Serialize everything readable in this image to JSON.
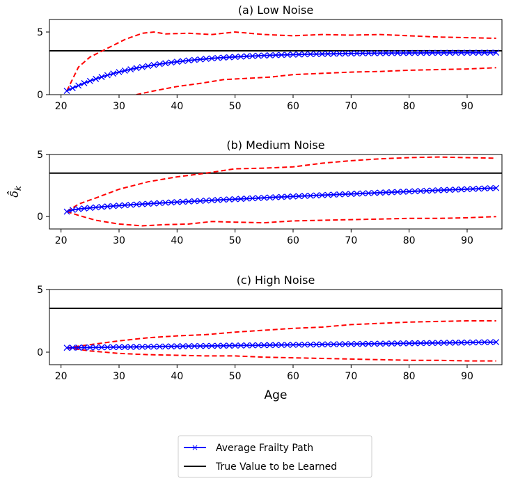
{
  "colors": {
    "average": "#0000ff",
    "band": "#ff0000",
    "truth": "#000000"
  },
  "chart_data": [
    {
      "type": "line",
      "title": "(a) Low Noise",
      "ylabel": "",
      "xlabel": "",
      "xlim": [
        18,
        96
      ],
      "ylim": [
        0,
        6
      ],
      "xticks": [
        20,
        30,
        40,
        50,
        60,
        70,
        80,
        90
      ],
      "yticks": [
        0,
        5
      ],
      "true_value": 3.5,
      "average": {
        "x0": 21,
        "x1": 95,
        "start": 0.3,
        "end": 3.35,
        "rate": 0.075
      },
      "upper_band": [
        [
          21,
          0.3
        ],
        [
          23,
          2.2
        ],
        [
          25,
          3.0
        ],
        [
          28,
          3.7
        ],
        [
          31,
          4.4
        ],
        [
          34,
          4.9
        ],
        [
          36,
          5.0
        ],
        [
          38,
          4.85
        ],
        [
          42,
          4.9
        ],
        [
          46,
          4.8
        ],
        [
          50,
          5.0
        ],
        [
          55,
          4.8
        ],
        [
          60,
          4.7
        ],
        [
          65,
          4.8
        ],
        [
          70,
          4.75
        ],
        [
          75,
          4.8
        ],
        [
          80,
          4.7
        ],
        [
          85,
          4.6
        ],
        [
          90,
          4.55
        ],
        [
          95,
          4.5
        ]
      ],
      "lower_band": [
        [
          33,
          0.0
        ],
        [
          36,
          0.3
        ],
        [
          40,
          0.65
        ],
        [
          44,
          0.9
        ],
        [
          48,
          1.2
        ],
        [
          52,
          1.3
        ],
        [
          56,
          1.4
        ],
        [
          60,
          1.6
        ],
        [
          65,
          1.7
        ],
        [
          70,
          1.8
        ],
        [
          75,
          1.85
        ],
        [
          80,
          1.95
        ],
        [
          85,
          2.0
        ],
        [
          90,
          2.05
        ],
        [
          95,
          2.15
        ]
      ]
    },
    {
      "type": "line",
      "title": "(b) Medium Noise",
      "ylabel": "δ̂",
      "ylabel_sub": "k",
      "xlabel": "",
      "xlim": [
        18,
        96
      ],
      "ylim": [
        -1,
        5
      ],
      "xticks": [
        20,
        30,
        40,
        50,
        60,
        70,
        80,
        90
      ],
      "yticks": [
        0,
        5
      ],
      "true_value": 3.5,
      "average": {
        "x0": 21,
        "x1": 95,
        "start": 0.4,
        "end": 2.3,
        "linear": 0.42,
        "curve": 1.6
      },
      "upper_band": [
        [
          21,
          0.4
        ],
        [
          23,
          1.0
        ],
        [
          26,
          1.5
        ],
        [
          30,
          2.2
        ],
        [
          35,
          2.8
        ],
        [
          40,
          3.2
        ],
        [
          45,
          3.5
        ],
        [
          50,
          3.85
        ],
        [
          55,
          3.9
        ],
        [
          60,
          4.0
        ],
        [
          65,
          4.3
        ],
        [
          70,
          4.5
        ],
        [
          75,
          4.65
        ],
        [
          80,
          4.75
        ],
        [
          85,
          4.8
        ],
        [
          90,
          4.75
        ],
        [
          95,
          4.7
        ]
      ],
      "lower_band": [
        [
          21,
          0.4
        ],
        [
          23,
          0.1
        ],
        [
          26,
          -0.3
        ],
        [
          30,
          -0.6
        ],
        [
          34,
          -0.75
        ],
        [
          38,
          -0.65
        ],
        [
          42,
          -0.6
        ],
        [
          46,
          -0.4
        ],
        [
          50,
          -0.45
        ],
        [
          55,
          -0.5
        ],
        [
          60,
          -0.35
        ],
        [
          65,
          -0.3
        ],
        [
          70,
          -0.25
        ],
        [
          75,
          -0.2
        ],
        [
          80,
          -0.15
        ],
        [
          85,
          -0.15
        ],
        [
          90,
          -0.1
        ],
        [
          95,
          0.0
        ]
      ]
    },
    {
      "type": "line",
      "title": "(c) High Noise",
      "ylabel": "",
      "xlabel": "Age",
      "xlim": [
        18,
        96
      ],
      "ylim": [
        -1,
        5
      ],
      "xticks": [
        20,
        30,
        40,
        50,
        60,
        70,
        80,
        90
      ],
      "yticks": [
        0,
        5
      ],
      "true_value": 3.5,
      "average": {
        "x0": 21,
        "x1": 95,
        "start": 0.35,
        "end": 0.8,
        "linear": 1.0,
        "curve": 0.0
      },
      "upper_band": [
        [
          21,
          0.35
        ],
        [
          25,
          0.6
        ],
        [
          30,
          0.9
        ],
        [
          35,
          1.15
        ],
        [
          40,
          1.3
        ],
        [
          45,
          1.4
        ],
        [
          50,
          1.6
        ],
        [
          55,
          1.75
        ],
        [
          60,
          1.9
        ],
        [
          65,
          2.0
        ],
        [
          70,
          2.2
        ],
        [
          75,
          2.3
        ],
        [
          80,
          2.4
        ],
        [
          85,
          2.45
        ],
        [
          90,
          2.5
        ],
        [
          95,
          2.5
        ]
      ],
      "lower_band": [
        [
          21,
          0.35
        ],
        [
          25,
          0.1
        ],
        [
          30,
          -0.1
        ],
        [
          35,
          -0.2
        ],
        [
          40,
          -0.25
        ],
        [
          45,
          -0.3
        ],
        [
          50,
          -0.3
        ],
        [
          55,
          -0.4
        ],
        [
          60,
          -0.45
        ],
        [
          65,
          -0.5
        ],
        [
          70,
          -0.55
        ],
        [
          75,
          -0.6
        ],
        [
          80,
          -0.65
        ],
        [
          85,
          -0.65
        ],
        [
          90,
          -0.7
        ],
        [
          95,
          -0.7
        ]
      ]
    }
  ],
  "legend": {
    "placement": "bottom-center",
    "entries": [
      "Average Frailty Path",
      "True Value to be Learned"
    ]
  }
}
